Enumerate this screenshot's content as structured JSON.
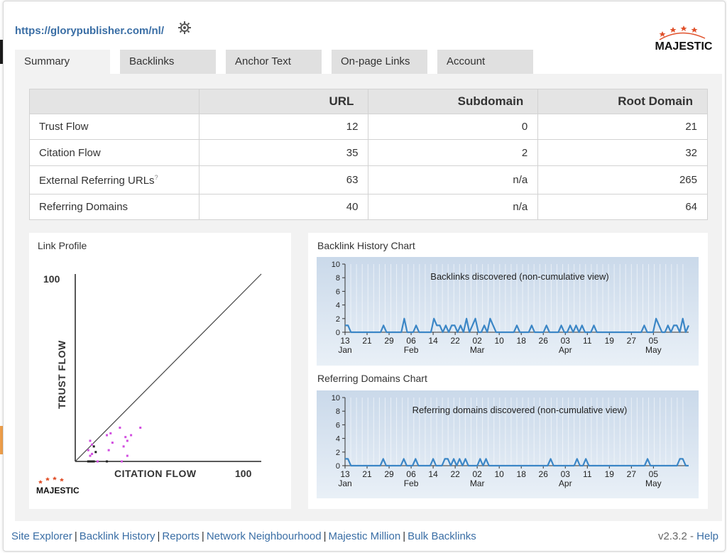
{
  "header": {
    "url": "https://glorypublisher.com/nl/",
    "logo_text": "MAJESTIC"
  },
  "tabs": [
    {
      "label": "Summary",
      "active": true
    },
    {
      "label": "Backlinks"
    },
    {
      "label": "Anchor Text"
    },
    {
      "label": "On-page Links"
    },
    {
      "label": "Account"
    }
  ],
  "stats_table": {
    "headers": [
      "",
      "URL",
      "Subdomain",
      "Root Domain"
    ],
    "rows": [
      {
        "label": "Trust Flow",
        "url": "12",
        "subdomain": "0",
        "root": "21"
      },
      {
        "label": "Citation Flow",
        "url": "35",
        "subdomain": "2",
        "root": "32"
      },
      {
        "label": "External Referring URLs",
        "sup": "?",
        "url": "63",
        "subdomain": "n/a",
        "root": "265"
      },
      {
        "label": "Referring Domains",
        "url": "40",
        "subdomain": "n/a",
        "root": "64"
      }
    ]
  },
  "link_profile": {
    "title": "Link Profile",
    "y_axis_label": "TRUST FLOW",
    "x_axis_label": "CITATION FLOW",
    "y_max_label": "100",
    "x_max_label": "100",
    "logo_text": "MAJESTIC",
    "points": [
      {
        "cf": 8,
        "tf": 11,
        "c": "#d14de0"
      },
      {
        "cf": 9,
        "tf": 9,
        "c": "#d14de0"
      },
      {
        "cf": 10,
        "tf": 8,
        "c": "#222"
      },
      {
        "cf": 7,
        "tf": 6,
        "c": "#d14de0"
      },
      {
        "cf": 11,
        "tf": 5,
        "c": "#222"
      },
      {
        "cf": 9,
        "tf": 4,
        "c": "#d14de0"
      },
      {
        "cf": 8,
        "tf": 3,
        "c": "#d14de0"
      },
      {
        "cf": 17,
        "tf": 14,
        "c": "#d14de0"
      },
      {
        "cf": 19,
        "tf": 15,
        "c": "#d14de0"
      },
      {
        "cf": 20,
        "tf": 10,
        "c": "#d14de0"
      },
      {
        "cf": 24,
        "tf": 18,
        "c": "#d14de0"
      },
      {
        "cf": 27,
        "tf": 13,
        "c": "#d14de0"
      },
      {
        "cf": 28,
        "tf": 11,
        "c": "#d14de0"
      },
      {
        "cf": 26,
        "tf": 8,
        "c": "#d14de0"
      },
      {
        "cf": 30,
        "tf": 14,
        "c": "#d14de0"
      },
      {
        "cf": 35,
        "tf": 18,
        "c": "#d14de0"
      },
      {
        "cf": 28,
        "tf": 3,
        "c": "#d14de0"
      },
      {
        "cf": 18,
        "tf": 6,
        "c": "#d14de0"
      },
      {
        "cf": 7,
        "tf": 0,
        "c": "#222"
      },
      {
        "cf": 8,
        "tf": 0,
        "c": "#222"
      },
      {
        "cf": 9,
        "tf": 0,
        "c": "#222"
      },
      {
        "cf": 10,
        "tf": 0,
        "c": "#222"
      },
      {
        "cf": 17,
        "tf": 0,
        "c": "#222"
      },
      {
        "cf": 12,
        "tf": 0,
        "c": "#d14de0"
      },
      {
        "cf": 25,
        "tf": 0,
        "c": "#d14de0"
      }
    ]
  },
  "chart_data": [
    {
      "type": "line",
      "title": "Backlink History Chart",
      "annotation": "Backlinks discovered (non-cumulative view)",
      "ylim": [
        0,
        10
      ],
      "y_ticks": [
        "0",
        "2",
        "4",
        "6",
        "8",
        "10"
      ],
      "x_ticks": [
        "13",
        "21",
        "29",
        "06",
        "14",
        "22",
        "02",
        "10",
        "18",
        "26",
        "03",
        "11",
        "19",
        "27",
        "05"
      ],
      "x_month_labels": [
        {
          "text": "Jan",
          "at": 0
        },
        {
          "text": "Feb",
          "at": 3
        },
        {
          "text": "Mar",
          "at": 6
        },
        {
          "text": "Apr",
          "at": 10
        },
        {
          "text": "May",
          "at": 14
        }
      ],
      "series": [
        {
          "values": [
            1,
            1,
            0,
            0,
            0,
            0,
            0,
            0,
            0,
            0,
            0,
            0,
            0,
            1,
            0,
            0,
            0,
            0,
            0,
            0,
            2,
            0,
            0,
            0,
            1,
            0,
            0,
            0,
            0,
            0,
            2,
            1,
            1,
            0,
            1,
            0,
            1,
            1,
            0,
            1,
            0,
            2,
            0,
            1,
            2,
            0,
            0,
            1,
            0,
            2,
            1,
            0,
            0,
            0,
            0,
            0,
            0,
            0,
            1,
            0,
            0,
            0,
            0,
            1,
            0,
            0,
            0,
            0,
            1,
            0,
            0,
            0,
            0,
            1,
            0,
            0,
            1,
            0,
            1,
            0,
            1,
            0,
            0,
            0,
            1,
            0,
            0,
            0,
            0,
            0,
            0,
            0,
            0,
            0,
            0,
            0,
            0,
            0,
            0,
            0,
            0,
            1,
            0,
            0,
            0,
            2,
            1,
            0,
            0,
            1,
            0,
            1,
            1,
            0,
            2,
            0,
            1
          ]
        }
      ]
    },
    {
      "type": "line",
      "title": "Referring Domains Chart",
      "annotation": "Referring domains discovered (non-cumulative view)",
      "ylim": [
        0,
        10
      ],
      "y_ticks": [
        "0",
        "2",
        "4",
        "6",
        "8",
        "10"
      ],
      "x_ticks": [
        "13",
        "21",
        "29",
        "06",
        "14",
        "22",
        "02",
        "10",
        "18",
        "26",
        "03",
        "11",
        "19",
        "27",
        "05"
      ],
      "x_month_labels": [
        {
          "text": "Jan",
          "at": 0
        },
        {
          "text": "Feb",
          "at": 3
        },
        {
          "text": "Mar",
          "at": 6
        },
        {
          "text": "Apr",
          "at": 10
        },
        {
          "text": "May",
          "at": 14
        }
      ],
      "series": [
        {
          "values": [
            1,
            1,
            0,
            0,
            0,
            0,
            0,
            0,
            0,
            0,
            0,
            0,
            0,
            1,
            0,
            0,
            0,
            0,
            0,
            0,
            1,
            0,
            0,
            0,
            1,
            0,
            0,
            0,
            0,
            0,
            1,
            0,
            0,
            0,
            1,
            1,
            0,
            1,
            0,
            1,
            0,
            1,
            0,
            0,
            0,
            0,
            1,
            0,
            1,
            0,
            0,
            0,
            0,
            0,
            0,
            0,
            0,
            0,
            0,
            0,
            0,
            0,
            0,
            0,
            0,
            0,
            0,
            0,
            0,
            0,
            1,
            0,
            0,
            0,
            0,
            0,
            0,
            0,
            0,
            1,
            0,
            0,
            1,
            0,
            0,
            0,
            0,
            0,
            0,
            0,
            0,
            0,
            0,
            0,
            0,
            0,
            0,
            0,
            0,
            0,
            0,
            0,
            0,
            1,
            0,
            0,
            0,
            0,
            0,
            0,
            0,
            0,
            0,
            0,
            1,
            1,
            0,
            0
          ]
        }
      ]
    }
  ],
  "footer": {
    "links": [
      "Site Explorer",
      "Backlink History",
      "Reports",
      "Network Neighbourhood",
      "Majestic Million",
      "Bulk Backlinks"
    ],
    "version": "v2.3.2 - ",
    "help": "Help"
  },
  "colors": {
    "link": "#3a6ea5",
    "line": "#3b86c6",
    "star": "#e0502a",
    "point": "#d14de0"
  }
}
